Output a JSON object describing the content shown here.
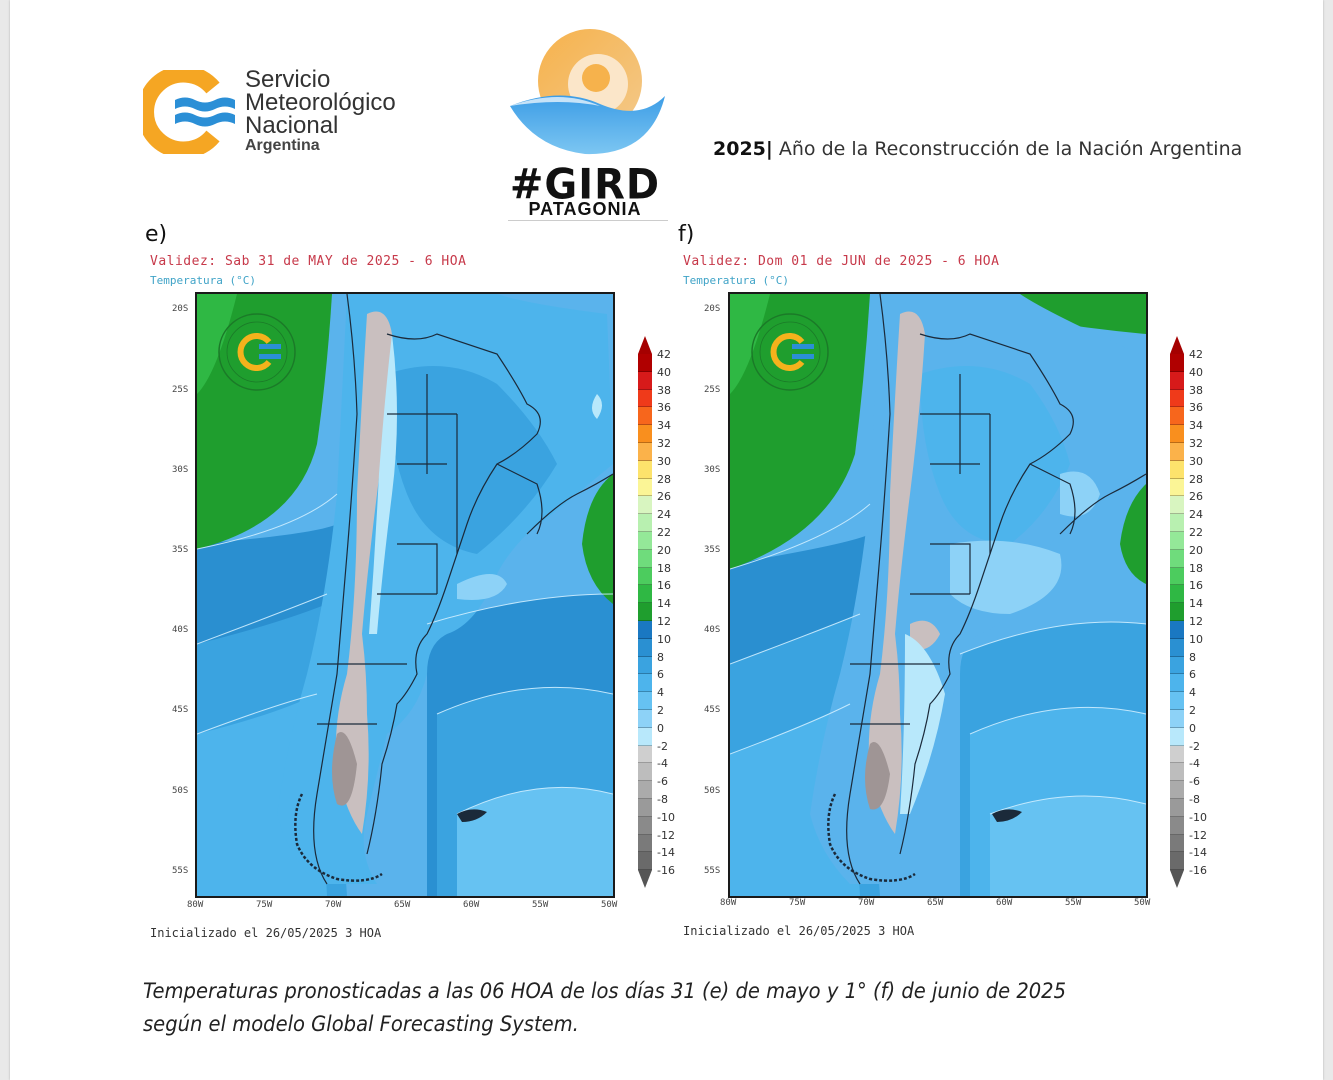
{
  "header": {
    "smn_logo": {
      "line1": "Servicio",
      "line2": "Meteorológico",
      "line3": "Nacional",
      "line4": "Argentina"
    },
    "gird_logo": {
      "title": "#GIRD",
      "subtitle": "PATAGONIA"
    },
    "motto_year": "2025|",
    "motto_text": " Año de la Reconstrucción de la Nación Argentina"
  },
  "panels": [
    {
      "letter": "e)",
      "validity": "Validez: Sab 31 de MAY de 2025 - 6 HOA",
      "variable": "Temperatura (°C)",
      "initialized": "Inicializado el 26/05/2025 3 HOA"
    },
    {
      "letter": "f)",
      "validity": "Validez: Dom 01 de JUN de 2025 - 6 HOA",
      "variable": "Temperatura (°C)",
      "initialized": "Inicializado el 26/05/2025 3 HOA"
    }
  ],
  "axes": {
    "lat_ticks": [
      "20S",
      "25S",
      "30S",
      "35S",
      "40S",
      "45S",
      "50S",
      "55S"
    ],
    "lon_ticks": [
      "80W",
      "75W",
      "70W",
      "65W",
      "60W",
      "55W",
      "50W"
    ]
  },
  "colorbar": {
    "ticks": [
      "42",
      "40",
      "38",
      "36",
      "34",
      "32",
      "30",
      "28",
      "26",
      "24",
      "22",
      "20",
      "18",
      "16",
      "14",
      "12",
      "10",
      "8",
      "6",
      "4",
      "2",
      "0",
      "-2",
      "-4",
      "-6",
      "-8",
      "-10",
      "-12",
      "-14",
      "-16"
    ],
    "colors": [
      "#b00000",
      "#d71a1a",
      "#ef3a1a",
      "#f7661c",
      "#f98f1e",
      "#fbb24a",
      "#fde36c",
      "#fbf596",
      "#d8f5c0",
      "#b8f0b0",
      "#94e898",
      "#6fdc7c",
      "#4ccc5e",
      "#2fb844",
      "#1f9e2e",
      "#1a78c2",
      "#2a90d2",
      "#3aa3e0",
      "#4db4ec",
      "#66c2f2",
      "#8dd2f7",
      "#b8e8fb",
      "#cfcfcf",
      "#bdbdbd",
      "#ababab",
      "#9a9a9a",
      "#8a8a8a",
      "#7a7a7a",
      "#6a6a6a",
      "#555555"
    ]
  },
  "caption": {
    "line1": "Temperaturas pronosticadas a las 06 HOA de los días 31 (e) de mayo y 1° (f) de junio de 2025",
    "line2": "según el modelo Global Forecasting System."
  }
}
